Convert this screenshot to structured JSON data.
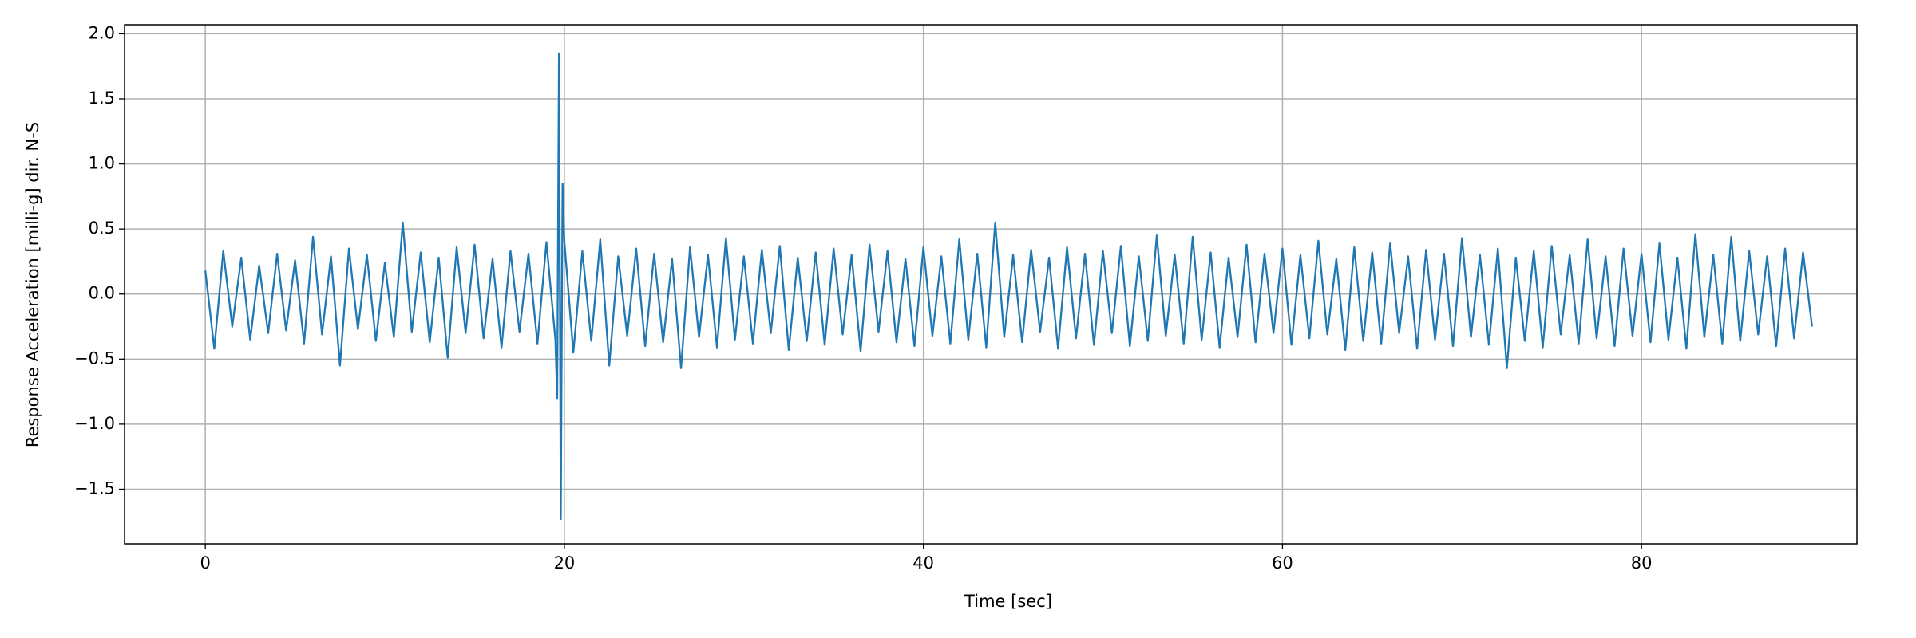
{
  "chart_data": {
    "type": "line",
    "xlabel": "Time [sec]",
    "ylabel": "Response Acceleration [milli-g] dir. N-S",
    "x": [
      0,
      0.5,
      1,
      1.5,
      2,
      2.5,
      3,
      3.5,
      4,
      4.5,
      5,
      5.5,
      6,
      6.5,
      7,
      7.5,
      8,
      8.5,
      9,
      9.5,
      10,
      10.5,
      11,
      11.5,
      12,
      12.5,
      13,
      13.5,
      14,
      14.5,
      15,
      15.5,
      16,
      16.5,
      17,
      17.5,
      18,
      18.5,
      19,
      19.5,
      19.6,
      19.7,
      19.8,
      19.9,
      20,
      20.5,
      21,
      21.5,
      22,
      22.5,
      23,
      23.5,
      24,
      24.5,
      25,
      25.5,
      26,
      26.5,
      27,
      27.5,
      28,
      28.5,
      29,
      29.5,
      30,
      30.5,
      31,
      31.5,
      32,
      32.5,
      33,
      33.5,
      34,
      34.5,
      35,
      35.5,
      36,
      36.5,
      37,
      37.5,
      38,
      38.5,
      39,
      39.5,
      40,
      40.5,
      41,
      41.5,
      42,
      42.5,
      43,
      43.5,
      44,
      44.5,
      45,
      45.5,
      46,
      46.5,
      47,
      47.5,
      48,
      48.5,
      49,
      49.5,
      50,
      50.5,
      51,
      51.5,
      52,
      52.5,
      53,
      53.5,
      54,
      54.5,
      55,
      55.5,
      56,
      56.5,
      57,
      57.5,
      58,
      58.5,
      59,
      59.5,
      60,
      60.5,
      61,
      61.5,
      62,
      62.5,
      63,
      63.5,
      64,
      64.5,
      65,
      65.5,
      66,
      66.5,
      67,
      67.5,
      68,
      68.5,
      69,
      69.5,
      70,
      70.5,
      71,
      71.5,
      72,
      72.5,
      73,
      73.5,
      74,
      74.5,
      75,
      75.5,
      76,
      76.5,
      77,
      77.5,
      78,
      78.5,
      79,
      79.5,
      80,
      80.5,
      81,
      81.5,
      82,
      82.5,
      83,
      83.5,
      84,
      84.5,
      85,
      85.5,
      86,
      86.5,
      87,
      87.5,
      88,
      88.5,
      89,
      89.5
    ],
    "series": [
      {
        "name": "N-S",
        "color": "#1f77b4",
        "values": [
          0.18,
          -0.42,
          0.33,
          -0.25,
          0.28,
          -0.35,
          0.22,
          -0.3,
          0.31,
          -0.28,
          0.26,
          -0.38,
          0.44,
          -0.31,
          0.29,
          -0.55,
          0.35,
          -0.27,
          0.3,
          -0.36,
          0.24,
          -0.33,
          0.55,
          -0.29,
          0.32,
          -0.37,
          0.28,
          -0.49,
          0.36,
          -0.3,
          0.38,
          -0.34,
          0.27,
          -0.41,
          0.33,
          -0.29,
          0.31,
          -0.38,
          0.4,
          -0.35,
          -0.8,
          1.85,
          -1.73,
          0.85,
          0.4,
          -0.45,
          0.33,
          -0.36,
          0.42,
          -0.55,
          0.29,
          -0.32,
          0.35,
          -0.4,
          0.31,
          -0.37,
          0.27,
          -0.57,
          0.36,
          -0.33,
          0.3,
          -0.41,
          0.43,
          -0.35,
          0.29,
          -0.38,
          0.34,
          -0.3,
          0.37,
          -0.43,
          0.28,
          -0.36,
          0.32,
          -0.39,
          0.35,
          -0.31,
          0.3,
          -0.44,
          0.38,
          -0.29,
          0.33,
          -0.37,
          0.27,
          -0.4,
          0.36,
          -0.32,
          0.29,
          -0.38,
          0.42,
          -0.35,
          0.31,
          -0.41,
          0.55,
          -0.33,
          0.3,
          -0.37,
          0.34,
          -0.29,
          0.28,
          -0.42,
          0.36,
          -0.34,
          0.31,
          -0.39,
          0.33,
          -0.3,
          0.37,
          -0.4,
          0.29,
          -0.36,
          0.45,
          -0.32,
          0.3,
          -0.38,
          0.44,
          -0.35,
          0.32,
          -0.41,
          0.28,
          -0.33,
          0.38,
          -0.37,
          0.31,
          -0.3,
          0.35,
          -0.39,
          0.3,
          -0.34,
          0.41,
          -0.31,
          0.27,
          -0.43,
          0.36,
          -0.36,
          0.32,
          -0.38,
          0.39,
          -0.3,
          0.29,
          -0.42,
          0.34,
          -0.35,
          0.31,
          -0.4,
          0.43,
          -0.33,
          0.3,
          -0.39,
          0.35,
          -0.57,
          0.28,
          -0.36,
          0.33,
          -0.41,
          0.37,
          -0.31,
          0.3,
          -0.38,
          0.42,
          -0.34,
          0.29,
          -0.4,
          0.35,
          -0.32,
          0.31,
          -0.37,
          0.39,
          -0.35,
          0.28,
          -0.42,
          0.46,
          -0.33,
          0.3,
          -0.38,
          0.44,
          -0.36,
          0.33,
          -0.31,
          0.29,
          -0.4,
          0.35,
          -0.34,
          0.32,
          -0.25
        ]
      }
    ],
    "xlim": [
      -4.5,
      92
    ],
    "xticks": [
      0,
      20,
      40,
      60,
      80
    ],
    "ylim": [
      -1.92,
      2.07
    ],
    "yticks": [
      {
        "value": -1.5,
        "label": "−1.5"
      },
      {
        "value": -1.0,
        "label": "−1.0"
      },
      {
        "value": -0.5,
        "label": "−0.5"
      },
      {
        "value": 0,
        "label": "0.0"
      },
      0.5,
      {
        "value": 1.0,
        "label": "1.0"
      },
      1.5,
      {
        "value": 2.0,
        "label": "2.0"
      }
    ],
    "grid": true
  }
}
